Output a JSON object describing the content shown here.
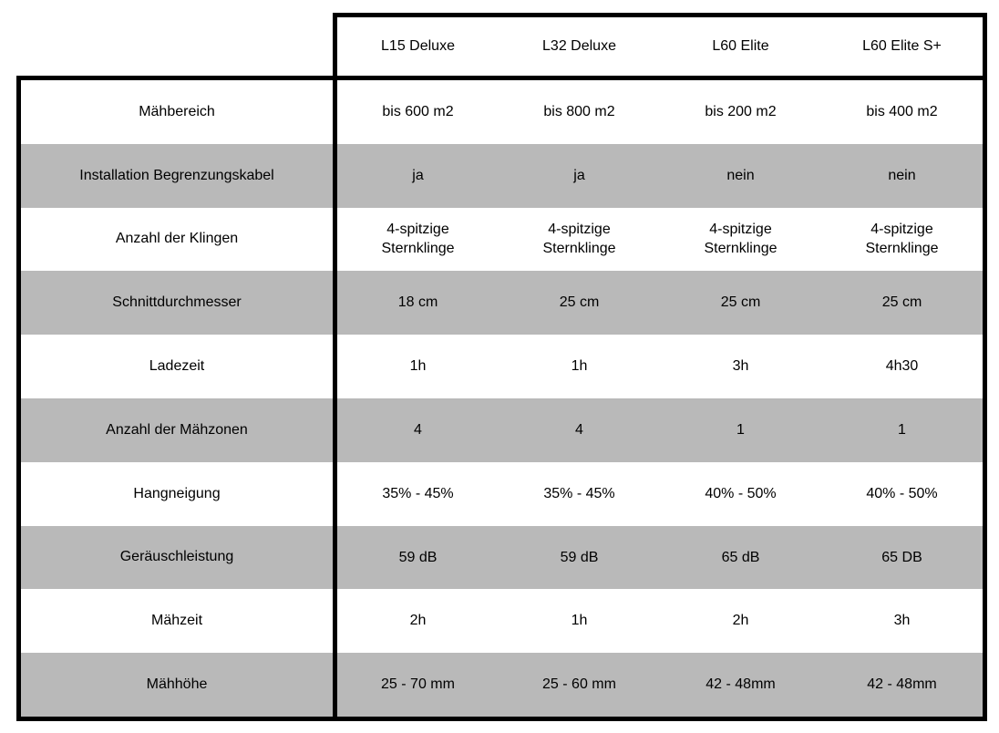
{
  "colors": {
    "border": "#000000",
    "row_alt_bg": "#b9b9b9",
    "row_bg": "#ffffff",
    "text": "#000000",
    "page_bg": "#ffffff"
  },
  "table": {
    "columns": [
      "L15 Deluxe",
      "L32 Deluxe",
      "L60 Elite",
      "L60 Elite S+"
    ],
    "rows": [
      {
        "label": "Mähbereich",
        "values": [
          "bis 600 m2",
          "bis 800 m2",
          "bis 200 m2",
          "bis 400 m2"
        ]
      },
      {
        "label": "Installation Begrenzungskabel",
        "values": [
          "ja",
          "ja",
          "nein",
          "nein"
        ]
      },
      {
        "label": "Anzahl der Klingen",
        "values": [
          "4-spitzige\nSternklinge",
          "4-spitzige\nSternklinge",
          "4-spitzige\nSternklinge",
          "4-spitzige\nSternklinge"
        ]
      },
      {
        "label": "Schnittdurchmesser",
        "values": [
          "18 cm",
          "25 cm",
          "25 cm",
          "25 cm"
        ]
      },
      {
        "label": "Ladezeit",
        "values": [
          "1h",
          "1h",
          "3h",
          "4h30"
        ]
      },
      {
        "label": "Anzahl der Mähzonen",
        "values": [
          "4",
          "4",
          "1",
          "1"
        ]
      },
      {
        "label": "Hangneigung",
        "values": [
          "35% - 45%",
          "35% - 45%",
          "40% - 50%",
          "40% - 50%"
        ]
      },
      {
        "label": "Geräuschleistung",
        "values": [
          "59 dB",
          "59 dB",
          "65 dB",
          "65 DB"
        ]
      },
      {
        "label": "Mähzeit",
        "values": [
          "2h",
          "1h",
          "2h",
          "3h"
        ]
      },
      {
        "label": "Mähhöhe",
        "values": [
          "25 - 70 mm",
          "25 - 60 mm",
          "42 - 48mm",
          "42 - 48mm"
        ]
      }
    ]
  },
  "chart_data": {
    "type": "table",
    "title": "",
    "columns": [
      "",
      "L15 Deluxe",
      "L32 Deluxe",
      "L60 Elite",
      "L60 Elite S+"
    ],
    "rows": [
      [
        "Mähbereich",
        "bis 600 m2",
        "bis 800 m2",
        "bis 200 m2",
        "bis 400 m2"
      ],
      [
        "Installation Begrenzungskabel",
        "ja",
        "ja",
        "nein",
        "nein"
      ],
      [
        "Anzahl der Klingen",
        "4-spitzige Sternklinge",
        "4-spitzige Sternklinge",
        "4-spitzige Sternklinge",
        "4-spitzige Sternklinge"
      ],
      [
        "Schnittdurchmesser",
        "18 cm",
        "25 cm",
        "25 cm",
        "25 cm"
      ],
      [
        "Ladezeit",
        "1h",
        "1h",
        "3h",
        "4h30"
      ],
      [
        "Anzahl der Mähzonen",
        "4",
        "4",
        "1",
        "1"
      ],
      [
        "Hangneigung",
        "35% - 45%",
        "35% - 45%",
        "40% - 50%",
        "40% - 50%"
      ],
      [
        "Geräuschleistung",
        "59 dB",
        "59 dB",
        "65 dB",
        "65 DB"
      ],
      [
        "Mähzeit",
        "2h",
        "1h",
        "2h",
        "3h"
      ],
      [
        "Mähhöhe",
        "25 - 70 mm",
        "25 - 60 mm",
        "42 - 48mm",
        "42 - 48mm"
      ]
    ],
    "layout_hints": {
      "zebra_striping": true,
      "stripe_color": "#b9b9b9",
      "thick_black_borders": true,
      "header_row_separate_box": true
    }
  }
}
